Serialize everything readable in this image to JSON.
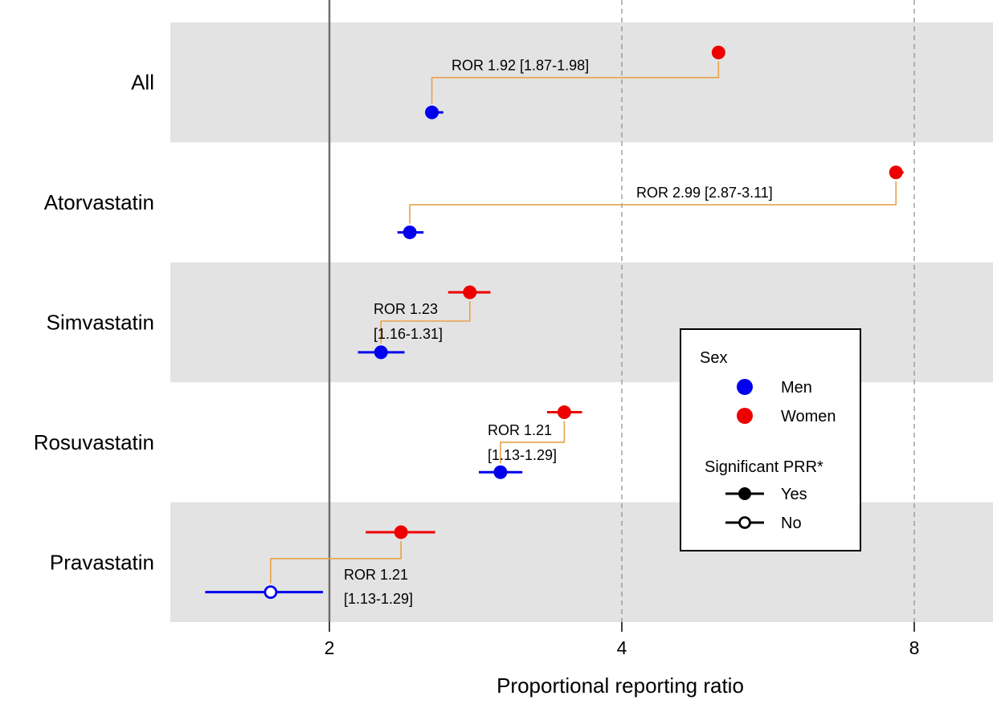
{
  "chart_data": {
    "type": "scatter",
    "subtype": "forest-plot",
    "title": "",
    "xlabel": "Proportional reporting ratio",
    "ylabel": "",
    "x_scale": "log2",
    "xlim": [
      1.23,
      9.6
    ],
    "x_ticks": [
      2,
      4,
      8
    ],
    "x_tick_labels": [
      "2",
      "4",
      "8"
    ],
    "reference_line": 2,
    "grid": "dashed vertical at 4 and 8",
    "categories": [
      "All",
      "Atorvastatin",
      "Simvastatin",
      "Rosuvastatin",
      "Pravastatin"
    ],
    "series": [
      {
        "name": "Men",
        "color": "#0000ee",
        "points": [
          {
            "category": "All",
            "x": 2.55,
            "lo": 2.51,
            "hi": 2.62,
            "significant": true
          },
          {
            "category": "Atorvastatin",
            "x": 2.42,
            "lo": 2.35,
            "hi": 2.5,
            "significant": true
          },
          {
            "category": "Simvastatin",
            "x": 2.26,
            "lo": 2.14,
            "hi": 2.39,
            "significant": true
          },
          {
            "category": "Rosuvastatin",
            "x": 3.0,
            "lo": 2.85,
            "hi": 3.16,
            "significant": true
          },
          {
            "category": "Pravastatin",
            "x": 1.74,
            "lo": 1.49,
            "hi": 1.97,
            "significant": false
          }
        ]
      },
      {
        "name": "Women",
        "color": "#ee0000",
        "points": [
          {
            "category": "All",
            "x": 5.03,
            "lo": 5.0,
            "hi": 5.06,
            "significant": true
          },
          {
            "category": "Atorvastatin",
            "x": 7.66,
            "lo": 7.55,
            "hi": 7.8,
            "significant": true
          },
          {
            "category": "Simvastatin",
            "x": 2.79,
            "lo": 2.65,
            "hi": 2.93,
            "significant": true
          },
          {
            "category": "Rosuvastatin",
            "x": 3.49,
            "lo": 3.35,
            "hi": 3.64,
            "significant": true
          },
          {
            "category": "Pravastatin",
            "x": 2.37,
            "lo": 2.18,
            "hi": 2.57,
            "significant": true
          }
        ]
      }
    ],
    "annotations": [
      {
        "category": "All",
        "lines": [
          "ROR 1.92 [1.87-1.98]"
        ]
      },
      {
        "category": "Atorvastatin",
        "lines": [
          "ROR 2.99 [2.87-3.11]"
        ]
      },
      {
        "category": "Simvastatin",
        "lines": [
          "ROR 1.23",
          "[1.16-1.31]"
        ]
      },
      {
        "category": "Rosuvastatin",
        "lines": [
          "ROR 1.21",
          "[1.13-1.29]"
        ]
      },
      {
        "category": "Pravastatin",
        "lines": [
          "ROR 1.21",
          "[1.13-1.29]"
        ]
      }
    ],
    "legend": {
      "placement": "right",
      "groups": [
        {
          "title": "Sex",
          "items": [
            {
              "label": "Men",
              "symbol": "filled-circle",
              "color": "#0000ee"
            },
            {
              "label": "Women",
              "symbol": "filled-circle",
              "color": "#ee0000"
            }
          ]
        },
        {
          "title": "Significant PRR*",
          "items": [
            {
              "label": "Yes",
              "symbol": "line-filled-circle",
              "color": "#000000"
            },
            {
              "label": "No",
              "symbol": "line-open-circle",
              "color": "#000000"
            }
          ]
        }
      ]
    },
    "colors": {
      "band": "#e3e3e3",
      "bracket": "#e8a14a",
      "reference": "#6e6e6e",
      "grid": "#8a8a8a"
    }
  }
}
